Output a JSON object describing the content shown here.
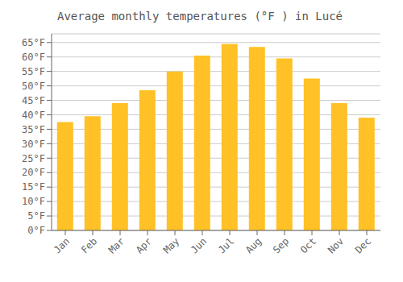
{
  "chart_data": {
    "type": "bar",
    "title": "Average monthly temperatures (°F ) in Lucé",
    "categories": [
      "Jan",
      "Feb",
      "Mar",
      "Apr",
      "May",
      "Jun",
      "Jul",
      "Aug",
      "Sep",
      "Oct",
      "Nov",
      "Dec"
    ],
    "values": [
      37.5,
      39.5,
      44.0,
      48.5,
      55.0,
      60.5,
      64.5,
      63.5,
      59.5,
      52.5,
      44.0,
      39.0
    ],
    "color": "#FFC125",
    "ylim": [
      0,
      68
    ],
    "yticks": [
      {
        "value": 0,
        "label": "0°F"
      },
      {
        "value": 5,
        "label": "5°F"
      },
      {
        "value": 10,
        "label": "10°F"
      },
      {
        "value": 15,
        "label": "15°F"
      },
      {
        "value": 20,
        "label": "20°F"
      },
      {
        "value": 25,
        "label": "25°F"
      },
      {
        "value": 30,
        "label": "30°F"
      },
      {
        "value": 35,
        "label": "35°F"
      },
      {
        "value": 40,
        "label": "40°F"
      },
      {
        "value": 45,
        "label": "45°F"
      },
      {
        "value": 50,
        "label": "50°F"
      },
      {
        "value": 55,
        "label": "55°F"
      },
      {
        "value": 60,
        "label": "60°F"
      },
      {
        "value": 65,
        "label": "65°F"
      }
    ],
    "grid": true
  }
}
